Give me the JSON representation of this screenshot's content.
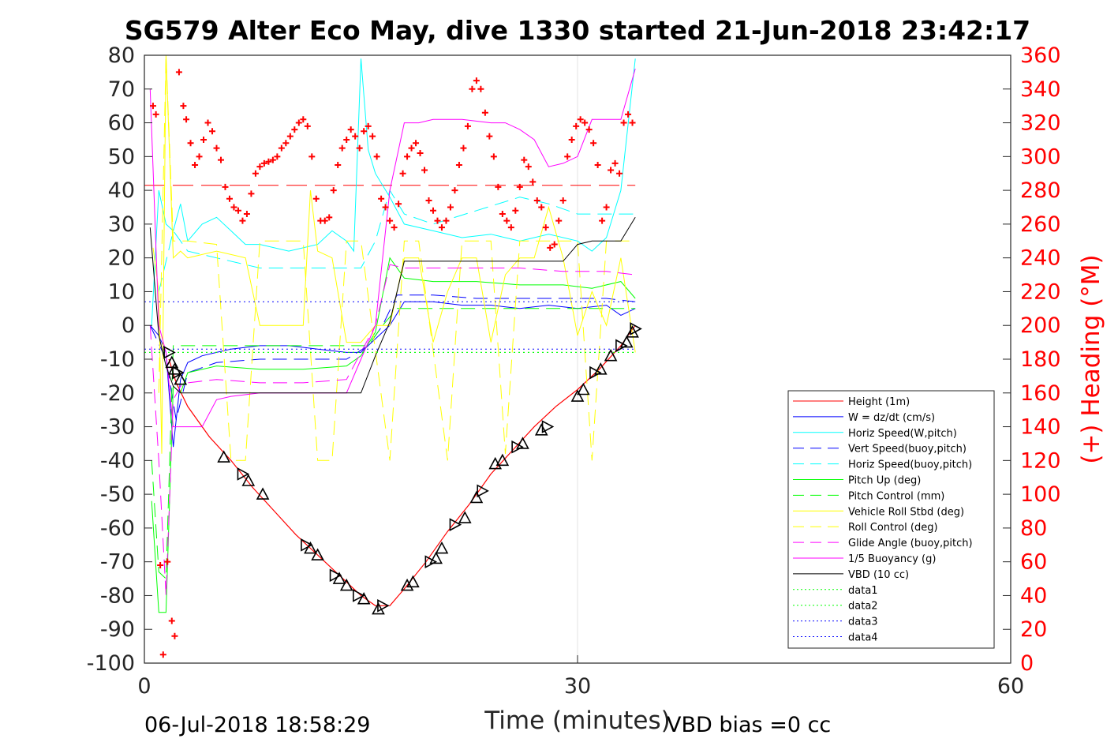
{
  "chart_data": {
    "type": "line",
    "title": "SG579 Alter Eco May, dive 1330 started 21-Jun-2018 23:42:17",
    "xlabel": "Time (minutes)",
    "ylabel_right": "(+) Heading (°M)",
    "xlim": [
      0,
      60
    ],
    "ylim_left": [
      -100,
      80
    ],
    "ylim_right": [
      0,
      360
    ],
    "x_ticks": [
      "0",
      "30",
      "60"
    ],
    "y_left_ticks": [
      "80",
      "70",
      "60",
      "50",
      "40",
      "30",
      "20",
      "10",
      "0",
      "-10",
      "-20",
      "-30",
      "-40",
      "-50",
      "-60",
      "-70",
      "-80",
      "-90",
      "-100"
    ],
    "y_right_ticks": [
      "360",
      "340",
      "320",
      "300",
      "280",
      "260",
      "240",
      "220",
      "200",
      "180",
      "160",
      "140",
      "120",
      "100",
      "80",
      "60",
      "40",
      "20",
      "0"
    ],
    "grid_x": [
      30
    ],
    "legend_position": "lower-right",
    "footer_left": "06-Jul-2018 18:58:29",
    "footer_right": "VBD bias =0 cc",
    "colors": {
      "height": "#ff0000",
      "w": "#0000ff",
      "horiz": "#00ffff",
      "pitch": "#00ff00",
      "roll": "#ffff00",
      "glide": "#ff00ff",
      "vbd": "#000000",
      "heading": "#ff0000"
    },
    "series": [
      {
        "name": "Height (1m)",
        "color": "#ff0000",
        "dash": "solid",
        "x": [
          1.7,
          2.2,
          3,
          4.5,
          6,
          7.5,
          9,
          10.5,
          12,
          13.5,
          15,
          16,
          17,
          18,
          19.5,
          21,
          22.5,
          24,
          25.5,
          27,
          28.5,
          30,
          31.5,
          33,
          34
        ],
        "y": [
          -10,
          -17,
          -24,
          -33,
          -40,
          -48,
          -55,
          -62,
          -68,
          -74,
          -80,
          -83,
          -83,
          -78,
          -70,
          -61,
          -53,
          -44,
          -37,
          -30,
          -24,
          -19,
          -13,
          -6,
          0
        ]
      },
      {
        "name": "W = dz/dt (cm/s)",
        "color": "#0000ff",
        "dash": "solid",
        "x": [
          0.4,
          1,
          1.5,
          2,
          2.5,
          3,
          4,
          5,
          6,
          8,
          10,
          12,
          14,
          15,
          16,
          17,
          18,
          20,
          22,
          24,
          26,
          28,
          30,
          32,
          33,
          34
        ],
        "y": [
          0,
          -3,
          -8,
          -36,
          -16,
          -11,
          -9,
          -8,
          -7,
          -6,
          -6,
          -7,
          -8,
          -8,
          -4,
          0,
          7,
          7,
          6,
          6,
          5,
          6,
          5,
          6,
          3,
          5
        ]
      },
      {
        "name": "Horiz Speed(W,pitch)",
        "color": "#00ffff",
        "dash": "solid",
        "x": [
          0.5,
          1,
          1.5,
          2,
          2.5,
          3,
          4,
          5,
          6,
          7,
          8,
          10,
          12,
          13,
          14,
          14.5,
          15,
          15.5,
          16,
          17,
          18,
          20,
          22,
          24,
          26,
          28,
          30,
          31,
          32,
          33,
          34
        ],
        "y": [
          0,
          40,
          30,
          28,
          36,
          25,
          30,
          32,
          28,
          24,
          24,
          22,
          24,
          28,
          25,
          22,
          79,
          52,
          45,
          38,
          30,
          28,
          26,
          27,
          25,
          27,
          25,
          22,
          26,
          40,
          79
        ]
      },
      {
        "name": "Vert Speed(buoy,pitch)",
        "color": "#0000ff",
        "dash": "dash",
        "x": [
          0.4,
          1.5,
          2.2,
          3,
          5,
          8,
          11,
          14,
          15.5,
          16.5,
          17.5,
          20,
          23,
          26,
          29,
          32,
          34
        ],
        "y": [
          0,
          -10,
          -28,
          -14,
          -11,
          -10,
          -10,
          -10,
          -6,
          0,
          9,
          9,
          8,
          8,
          8,
          8,
          7
        ]
      },
      {
        "name": "Horiz Speed(buoy,pitch)",
        "color": "#00ffff",
        "dash": "dash",
        "x": [
          1,
          2,
          3,
          5,
          8,
          11,
          14,
          15,
          16,
          17,
          18,
          20,
          23,
          26,
          28,
          30,
          32,
          34
        ],
        "y": [
          10,
          28,
          22,
          20,
          17,
          17,
          17,
          17,
          25,
          40,
          33,
          30,
          34,
          38,
          36,
          33,
          33,
          33
        ]
      },
      {
        "name": "Pitch Up (deg)",
        "color": "#00ff00",
        "dash": "solid",
        "x": [
          0.5,
          1,
          1.5,
          2,
          2.5,
          3,
          5,
          8,
          11,
          14,
          15,
          16,
          17,
          18,
          20,
          23,
          26,
          29,
          31,
          33,
          34
        ],
        "y": [
          -52,
          -85,
          -85,
          -18,
          -20,
          -14,
          -12,
          -13,
          -13,
          -12,
          -9,
          -2,
          20,
          14,
          13,
          13,
          12,
          12,
          11,
          13,
          8
        ]
      },
      {
        "name": "Pitch Control (mm)",
        "color": "#00ff00",
        "dash": "dash",
        "x": [
          0.5,
          1,
          1.5,
          2,
          2.5,
          3,
          8,
          14,
          15.5,
          16.5,
          17.5,
          20,
          25,
          30,
          34
        ],
        "y": [
          -40,
          -73,
          -75,
          -6,
          -6,
          -6,
          -6,
          -6,
          -6,
          0,
          5,
          5,
          5,
          5,
          5
        ]
      },
      {
        "name": "Vehicle Roll Stbd (deg)",
        "color": "#ffff00",
        "dash": "solid",
        "x": [
          0.6,
          1,
          1.2,
          1.5,
          2,
          2.5,
          3,
          5,
          7,
          8,
          10,
          11,
          11.5,
          12,
          13,
          14,
          15,
          16,
          17,
          18,
          19,
          20,
          21,
          22,
          23,
          24,
          25,
          26,
          27,
          28,
          29,
          30,
          31,
          32,
          33,
          34
        ],
        "y": [
          23,
          10,
          -38,
          80,
          20,
          22,
          20,
          22,
          20,
          0,
          0,
          0,
          40,
          22,
          20,
          -5,
          -5,
          0,
          0,
          20,
          20,
          -5,
          10,
          20,
          20,
          -5,
          15,
          20,
          20,
          35,
          20,
          -3,
          10,
          0,
          20,
          -8
        ]
      },
      {
        "name": "Roll Control (deg)",
        "color": "#ffff00",
        "dash": "dash",
        "x": [
          1,
          1.5,
          2,
          3,
          5,
          6,
          7,
          8,
          9,
          11,
          12,
          13,
          14,
          15,
          17,
          18,
          19,
          21,
          22,
          24,
          25,
          26,
          28,
          29,
          30,
          31,
          32,
          33,
          34
        ],
        "y": [
          -20,
          80,
          25,
          25,
          24,
          -40,
          -40,
          25,
          25,
          25,
          -40,
          -40,
          25,
          25,
          -40,
          25,
          25,
          -40,
          25,
          25,
          -38,
          25,
          25,
          25,
          25,
          -40,
          25,
          25,
          25
        ]
      },
      {
        "name": "Glide Angle (buoy,pitch)",
        "color": "#ff00ff",
        "dash": "dash",
        "x": [
          0.4,
          1,
          1.5,
          2,
          2.5,
          3,
          5,
          8,
          11,
          14,
          15,
          16,
          17,
          18,
          20,
          23,
          26,
          29,
          32,
          34
        ],
        "y": [
          0,
          -40,
          -80,
          -22,
          -18,
          -17,
          -16,
          -17,
          -17,
          -16,
          -8,
          0,
          18,
          17,
          17,
          17,
          17,
          16,
          16,
          15
        ]
      },
      {
        "name": "1/5 Buoyancy (g)",
        "color": "#ff00ff",
        "dash": "solid",
        "x": [
          0.4,
          1,
          1.5,
          2,
          2.5,
          3,
          4,
          5,
          6,
          8,
          11,
          14,
          15,
          16,
          17,
          18,
          19,
          20,
          22,
          24,
          25,
          26,
          27,
          28,
          29,
          30,
          31,
          32,
          33,
          34
        ],
        "y": [
          70,
          0,
          -8,
          -30,
          -30,
          -30,
          -30,
          -22,
          -21,
          -20,
          -20,
          -20,
          -10,
          0,
          40,
          60,
          60,
          61,
          61,
          60,
          60,
          58,
          55,
          47,
          48,
          50,
          61,
          61,
          61,
          76
        ]
      },
      {
        "name": "VBD (10 cc)",
        "color": "#000000",
        "dash": "solid",
        "x": [
          0.4,
          1,
          1.5,
          2,
          2.5,
          3,
          5,
          8,
          11,
          14,
          15,
          16,
          17,
          18,
          20,
          23,
          26,
          29,
          30,
          31,
          32,
          33,
          34
        ],
        "y": [
          29,
          -3,
          -12,
          -18,
          -20,
          -20,
          -20,
          -20,
          -20,
          -20,
          -20,
          -9,
          1,
          19,
          19,
          19,
          19,
          19,
          24,
          25,
          25,
          25,
          32
        ]
      },
      {
        "name": "data1",
        "color": "#00ff00",
        "dash": "dot",
        "x": [
          0,
          34
        ],
        "y": [
          -8,
          -8
        ]
      },
      {
        "name": "data2",
        "color": "#00ff00",
        "dash": "dot",
        "x": [
          0,
          34
        ],
        "y": [
          -8,
          -8
        ]
      },
      {
        "name": "data3",
        "color": "#0000ff",
        "dash": "dot",
        "x": [
          0,
          34
        ],
        "y": [
          7,
          7
        ]
      },
      {
        "name": "data4",
        "color": "#0000ff",
        "dash": "dot",
        "x": [
          0,
          34
        ],
        "y": [
          -7,
          -7
        ]
      }
    ],
    "heading_reference": {
      "color": "#ff0000",
      "dash": "longdash",
      "value": 283
    },
    "heading_points": {
      "x": [
        0.6,
        0.8,
        1.1,
        1.3,
        1.6,
        1.9,
        2.1,
        2.4,
        2.7,
        2.9,
        3.2,
        3.5,
        3.8,
        4.1,
        4.4,
        4.7,
        5,
        5.3,
        5.6,
        5.9,
        6.2,
        6.5,
        6.8,
        7.1,
        7.4,
        7.7,
        8,
        8.3,
        8.6,
        8.9,
        9.2,
        9.5,
        9.8,
        10.1,
        10.4,
        10.7,
        11,
        11.3,
        11.6,
        11.9,
        12.2,
        12.5,
        12.8,
        13.1,
        13.4,
        13.7,
        14,
        14.3,
        14.6,
        14.9,
        15.2,
        15.5,
        15.8,
        16.1,
        16.4,
        16.7,
        17,
        17.3,
        17.6,
        17.9,
        18.2,
        18.5,
        18.8,
        19.1,
        19.4,
        19.7,
        20,
        20.3,
        20.6,
        20.9,
        21.2,
        21.5,
        21.8,
        22.1,
        22.4,
        22.7,
        23,
        23.3,
        23.6,
        23.9,
        24.2,
        24.5,
        24.8,
        25.1,
        25.4,
        25.7,
        26,
        26.3,
        26.6,
        26.9,
        27.2,
        27.5,
        27.8,
        28.1,
        28.4,
        28.7,
        29,
        29.3,
        29.6,
        29.9,
        30.2,
        30.5,
        30.8,
        31.1,
        31.4,
        31.7,
        32,
        32.3,
        32.6,
        32.9,
        33.2,
        33.5,
        33.8
      ],
      "y": [
        330,
        325,
        58,
        5,
        60,
        25,
        16,
        350,
        330,
        322,
        308,
        295,
        300,
        310,
        320,
        315,
        305,
        298,
        282,
        275,
        270,
        268,
        262,
        266,
        278,
        290,
        294,
        296,
        297,
        298,
        300,
        305,
        308,
        312,
        316,
        320,
        322,
        318,
        300,
        275,
        262,
        262,
        264,
        280,
        295,
        305,
        310,
        316,
        312,
        305,
        315,
        318,
        312,
        300,
        275,
        270,
        262,
        258,
        272,
        290,
        300,
        305,
        308,
        302,
        292,
        274,
        268,
        262,
        258,
        262,
        270,
        280,
        295,
        305,
        318,
        340,
        345,
        340,
        326,
        312,
        300,
        282,
        266,
        262,
        258,
        268,
        282,
        298,
        294,
        285,
        274,
        270,
        258,
        246,
        248,
        262,
        274,
        300,
        310,
        318,
        322,
        320,
        316,
        308,
        295,
        262,
        270,
        292,
        296,
        290,
        320,
        325,
        320
      ]
    },
    "depth_markers": {
      "x": [
        1.7,
        1.9,
        2.1,
        2.3,
        2.5,
        5.5,
        6.8,
        7.2,
        8.2,
        11.2,
        11.5,
        12.0,
        13.2,
        13.5,
        14,
        14.8,
        15.2,
        16.2,
        16.5,
        18.2,
        18.6,
        19.8,
        20.2,
        20.6,
        21.5,
        22.2,
        23,
        23.4,
        24.3,
        24.8,
        25.8,
        26.2,
        27.5,
        27.9,
        30,
        30.4,
        31.2,
        31.6,
        32.3,
        33,
        33.4,
        33.8,
        34
      ],
      "y": [
        -8,
        -11,
        -13,
        -14,
        -16,
        -39,
        -44,
        -46,
        -50,
        -65,
        -66,
        -68,
        -74,
        -75,
        -77,
        -80,
        -81,
        -84,
        -83,
        -77,
        -76,
        -70,
        -69,
        -66,
        -59,
        -57,
        -51,
        -49,
        -41,
        -40,
        -36,
        -35,
        -31,
        -30,
        -21,
        -19,
        -14,
        -13,
        -9,
        -6,
        -5,
        -2,
        -1
      ]
    }
  }
}
